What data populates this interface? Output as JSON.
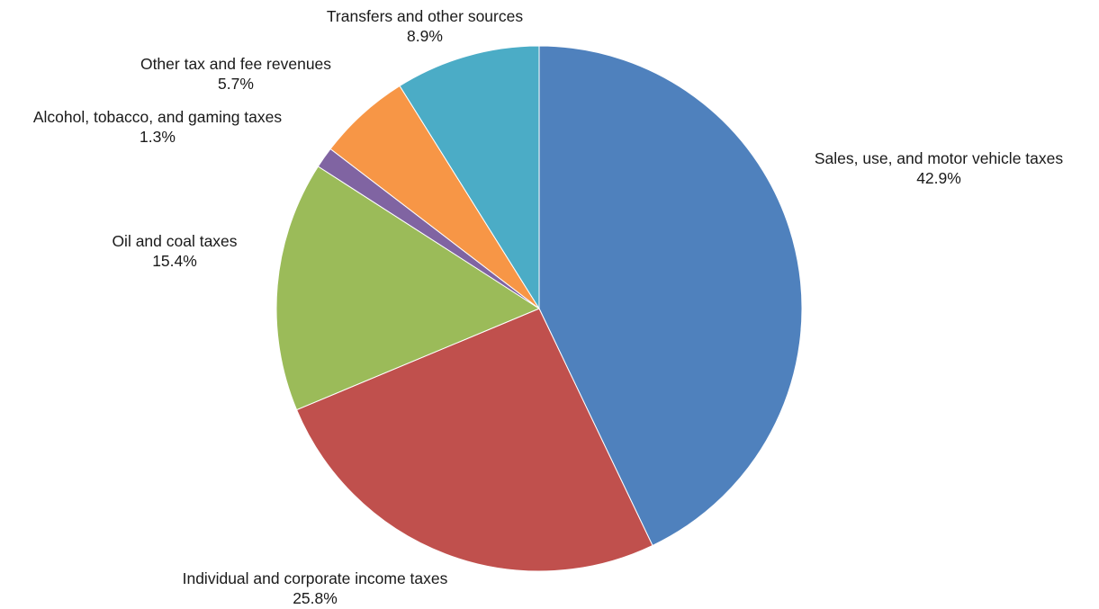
{
  "chart_data": {
    "type": "pie",
    "title": "",
    "slices": [
      {
        "label": "Sales, use, and motor vehicle taxes",
        "value": 42.9,
        "value_label": "42.9%",
        "color": "#4f81bd"
      },
      {
        "label": "Individual and corporate income taxes",
        "value": 25.8,
        "value_label": "25.8%",
        "color": "#c0504d"
      },
      {
        "label": "Oil and coal taxes",
        "value": 15.4,
        "value_label": "15.4%",
        "color": "#9bbb59"
      },
      {
        "label": "Alcohol, tobacco, and gaming taxes",
        "value": 1.3,
        "value_label": "1.3%",
        "color": "#8064a2"
      },
      {
        "label": "Other tax and fee revenues",
        "value": 5.7,
        "value_label": "5.7%",
        "color": "#f79646"
      },
      {
        "label": "Transfers and other sources",
        "value": 8.9,
        "value_label": "8.9%",
        "color": "#4bacc6"
      }
    ],
    "start": "12 o'clock",
    "direction": "clockwise",
    "legend": "none (labels beside slices)"
  }
}
